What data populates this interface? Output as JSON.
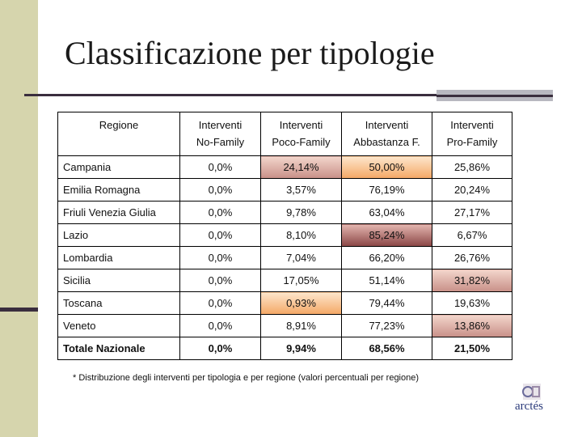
{
  "title": "Classificazione per tipologie",
  "table": {
    "header": [
      "Regione",
      "Interventi\nNo-Family",
      "Interventi\nPoco-Family",
      "Interventi\nAbbastanza F.",
      "Interventi\nPro-Family"
    ],
    "rows": [
      [
        "Campania",
        "0,0%",
        "24,14%",
        "50,00%",
        "25,86%"
      ],
      [
        "Emilia Romagna",
        "0,0%",
        "3,57%",
        "76,19%",
        "20,24%"
      ],
      [
        "Friuli Venezia Giulia",
        "0,0%",
        "9,78%",
        "63,04%",
        "27,17%"
      ],
      [
        "Lazio",
        "0,0%",
        "8,10%",
        "85,24%",
        "6,67%"
      ],
      [
        "Lombardia",
        "0,0%",
        "7,04%",
        "66,20%",
        "26,76%"
      ],
      [
        "Sicilia",
        "0,0%",
        "17,05%",
        "51,14%",
        "31,82%"
      ],
      [
        "Toscana",
        "0,0%",
        "0,93%",
        "79,44%",
        "19,63%"
      ],
      [
        "Veneto",
        "0,0%",
        "8,91%",
        "77,23%",
        "13,86%"
      ],
      [
        "Totale Nazionale",
        "0,0%",
        "9,94%",
        "68,56%",
        "21,50%"
      ]
    ]
  },
  "footnote": "* Distribuzione degli interventi per tipologia e per regione (valori percentuali per regione)",
  "logo": "arctés"
}
